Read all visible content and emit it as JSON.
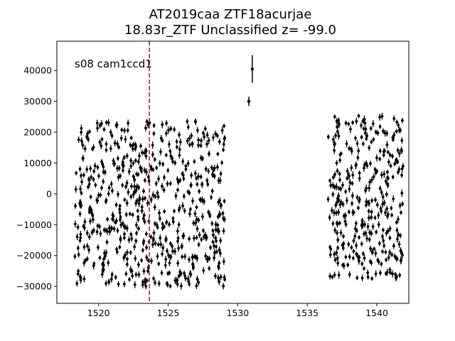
{
  "chart_data": {
    "type": "scatter",
    "title_line1": "AT2019caa  ZTF18acurjae",
    "title_line2": "18.83r_ZTF Unclassified z= -99.0",
    "xlabel": "",
    "ylabel": "",
    "annotation": "s08 cam1ccd1",
    "xlim": [
      1517.0,
      1542.3
    ],
    "ylim": [
      -35500,
      49500
    ],
    "x_ticks": [
      1520,
      1525,
      1530,
      1535,
      1540
    ],
    "y_ticks": [
      -30000,
      -20000,
      -10000,
      0,
      10000,
      20000,
      30000,
      40000
    ],
    "x_tick_labels": [
      "1520",
      "1525",
      "1530",
      "1535",
      "1540"
    ],
    "y_tick_labels": [
      "−30000",
      "−20000",
      "−10000",
      "0",
      "10000",
      "20000",
      "30000",
      "40000"
    ],
    "vline": {
      "x": 1523.65,
      "color": "#ff0000",
      "style": "dashed"
    },
    "marker_color": "#000000",
    "noise_segments": [
      {
        "x_start": 1518.3,
        "x_end": 1529.1,
        "count": 620,
        "y_min": -30000,
        "y_max": 23500
      },
      {
        "x_start": 1536.5,
        "x_end": 1541.9,
        "count": 330,
        "y_min": -28000,
        "y_max": 25500
      }
    ],
    "outliers": [
      {
        "x": 1530.8,
        "y": 30000,
        "err": 1500
      },
      {
        "x": 1531.05,
        "y": 40500,
        "err": 4500
      }
    ],
    "grid": false,
    "legend": "none"
  }
}
